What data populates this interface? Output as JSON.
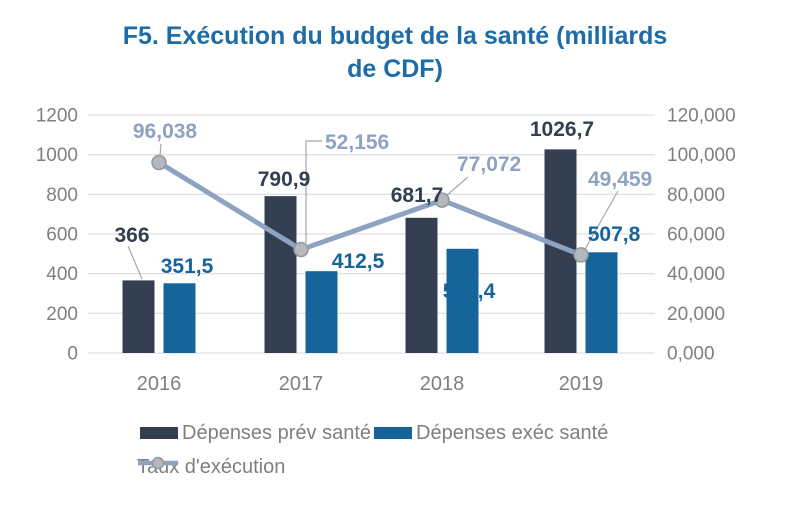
{
  "title": {
    "full": "F5. Exécution du budget de la santé (milliards de CDF)",
    "lines": [
      "F5. Exécution du budget de la santé (milliards",
      "de CDF)"
    ]
  },
  "chart_data": {
    "type": "bar",
    "subtype": "bar-line-combo",
    "title": "F5. Exécution du budget de la santé (milliards de CDF)",
    "xlabel": "",
    "ylabel": "",
    "categories": [
      "2016",
      "2017",
      "2018",
      "2019"
    ],
    "series": [
      {
        "name": "Dépenses prév santé",
        "type": "bar",
        "axis": "left",
        "color": "#333F50",
        "values": [
          366,
          790.9,
          681.7,
          1026.7
        ],
        "labels": [
          "366",
          "790,9",
          "681,7",
          "1026,7"
        ]
      },
      {
        "name": "Dépenses exéc santé",
        "type": "bar",
        "axis": "left",
        "color": "#17649B",
        "values": [
          351.5,
          412.5,
          525.4,
          507.8
        ],
        "labels": [
          "351,5",
          "412,5",
          "525,4",
          "507,8"
        ]
      },
      {
        "name": "Taux d'exécution",
        "type": "line",
        "axis": "right",
        "color": "#8EA3C2",
        "marker_fill": "#B4B7BC",
        "marker_stroke": "#93979E",
        "values": [
          96.038,
          52.156,
          77.072,
          49.459
        ],
        "labels": [
          "96,038",
          "52,156",
          "77,072",
          "49,459"
        ]
      }
    ],
    "left_axis": {
      "min": 0,
      "max": 1200,
      "step": 200,
      "ticks": [
        "0",
        "200",
        "400",
        "600",
        "800",
        "1000",
        "1200"
      ]
    },
    "right_axis": {
      "min": 0,
      "max": 120,
      "step": 20,
      "ticks": [
        "0,000",
        "20,000",
        "40,000",
        "60,000",
        "80,000",
        "100,000",
        "120,000"
      ]
    },
    "grid": true,
    "legend_position": "bottom",
    "legend": [
      "Dépenses prév santé",
      "Dépenses exéc santé",
      "Taux d'exécution"
    ]
  },
  "colors": {
    "title": "#1D6CA8",
    "axis_text": "#7F7F7F",
    "gridline": "#E0E0E4",
    "leader_line": "#A6A6A6",
    "bar_prev": "#333F50",
    "bar_exec": "#17649B",
    "line": "#8EA3C2",
    "marker_fill": "#B4B7BC",
    "marker_stroke": "#93979E"
  }
}
